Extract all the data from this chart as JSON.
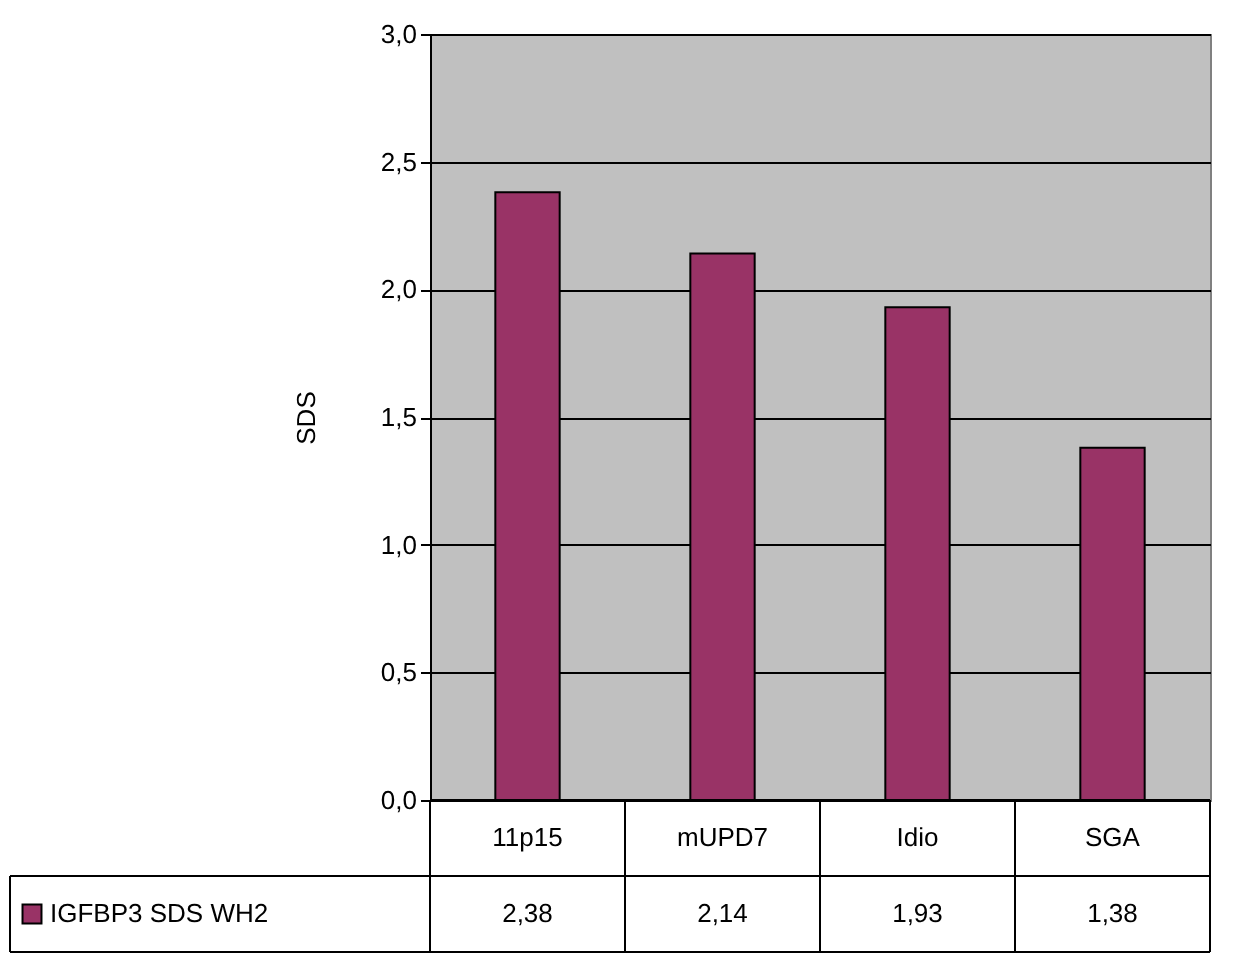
{
  "chart_data": {
    "type": "bar",
    "categories": [
      "11p15",
      "mUPD7",
      "Idio",
      "SGA"
    ],
    "series": [
      {
        "name": "IGFBP3 SDS WH2",
        "color": "#993366",
        "values": [
          2.38,
          2.14,
          1.93,
          1.38
        ],
        "value_labels": [
          "2,38",
          "2,14",
          "1,93",
          "1,38"
        ]
      }
    ],
    "ylabel": "SDS",
    "ylim": [
      0,
      3
    ],
    "yticks": [
      {
        "value": 0,
        "label": "0,0"
      },
      {
        "value": 0.5,
        "label": "0,5"
      },
      {
        "value": 1,
        "label": "1,0"
      },
      {
        "value": 1.5,
        "label": "1,5"
      },
      {
        "value": 2,
        "label": "2,0"
      },
      {
        "value": 2.5,
        "label": "2,5"
      },
      {
        "value": 3,
        "label": "3,0"
      }
    ],
    "grid": "y",
    "legend": "bottom"
  }
}
